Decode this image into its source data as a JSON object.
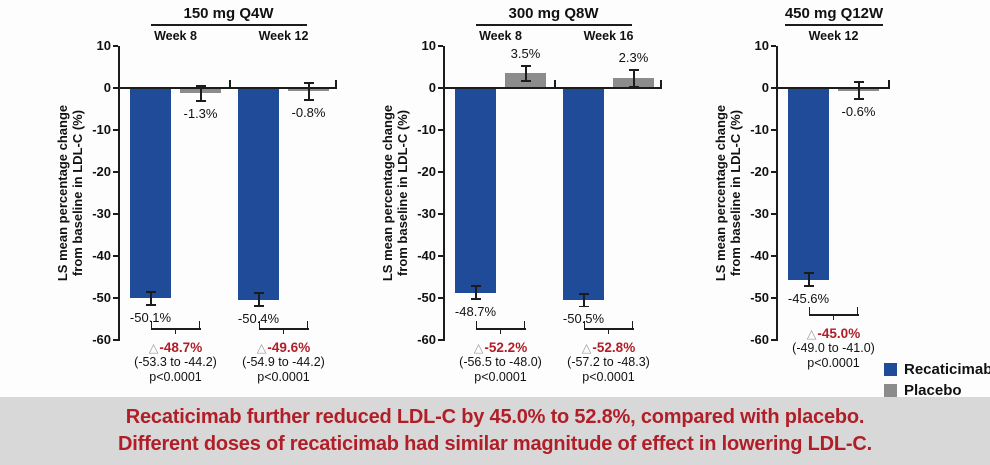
{
  "ylabel": {
    "line1": "LS mean percentage change",
    "line2": "from baseline in LDL-C (%)"
  },
  "legend": [
    {
      "label": "Recaticimab",
      "color": "#1f4b99"
    },
    {
      "label": "Placebo",
      "color": "#8c8c8c"
    }
  ],
  "banner": {
    "line1": "Recaticimab further reduced LDL-C by 45.0% to 52.8%, compared with placebo.",
    "line2": "Different doses of recaticimab had similar magnitude of effect in lowering LDL-C."
  },
  "chart_data": [
    {
      "type": "bar",
      "title": "150 mg Q4W",
      "ylabel": "LS mean percentage change from baseline in LDL-C (%)",
      "ylim": [
        -60,
        10
      ],
      "yticks": [
        10,
        0,
        -10,
        -20,
        -30,
        -40,
        -50,
        -60
      ],
      "series_names": [
        "Recaticimab",
        "Placebo"
      ],
      "groups": [
        {
          "week": "Week 8",
          "recaticimab": {
            "value": -50.1,
            "err": 1.5,
            "label": "-50.1%"
          },
          "placebo": {
            "value": -1.3,
            "err": 1.8,
            "label": "-1.3%"
          },
          "diff": "-48.7%",
          "ci": "(-53.3 to -44.2)",
          "p": "p<0.0001"
        },
        {
          "week": "Week 12",
          "recaticimab": {
            "value": -50.4,
            "err": 1.5,
            "label": "-50.4%"
          },
          "placebo": {
            "value": -0.8,
            "err": 2.0,
            "label": "-0.8%"
          },
          "diff": "-49.6%",
          "ci": "(-54.9 to -44.2)",
          "p": "p<0.0001"
        }
      ]
    },
    {
      "type": "bar",
      "title": "300 mg Q8W",
      "ylabel": "LS mean percentage change from baseline in LDL-C (%)",
      "ylim": [
        -60,
        10
      ],
      "yticks": [
        10,
        0,
        -10,
        -20,
        -30,
        -40,
        -50,
        -60
      ],
      "series_names": [
        "Recaticimab",
        "Placebo"
      ],
      "groups": [
        {
          "week": "Week 8",
          "recaticimab": {
            "value": -48.7,
            "err": 1.5,
            "label": "-48.7%"
          },
          "placebo": {
            "value": 3.5,
            "err": 1.8,
            "label": "3.5%"
          },
          "diff": "-52.2%",
          "ci": "(-56.5 to -48.0)",
          "p": "p<0.0001"
        },
        {
          "week": "Week 16",
          "recaticimab": {
            "value": -50.5,
            "err": 1.5,
            "label": "-50.5%"
          },
          "placebo": {
            "value": 2.3,
            "err": 2.0,
            "label": "2.3%"
          },
          "diff": "-52.8%",
          "ci": "(-57.2 to -48.3)",
          "p": "p<0.0001"
        }
      ]
    },
    {
      "type": "bar",
      "title": "450 mg Q12W",
      "ylabel": "LS mean percentage change from baseline in LDL-C (%)",
      "ylim": [
        -60,
        10
      ],
      "yticks": [
        10,
        0,
        -10,
        -20,
        -30,
        -40,
        -50,
        -60
      ],
      "series_names": [
        "Recaticimab",
        "Placebo"
      ],
      "groups": [
        {
          "week": "Week 12",
          "recaticimab": {
            "value": -45.6,
            "err": 1.5,
            "label": "-45.6%"
          },
          "placebo": {
            "value": -0.6,
            "err": 2.0,
            "label": "-0.6%"
          },
          "diff": "-45.0%",
          "ci": "(-49.0 to -41.0)",
          "p": "p<0.0001"
        }
      ]
    }
  ]
}
